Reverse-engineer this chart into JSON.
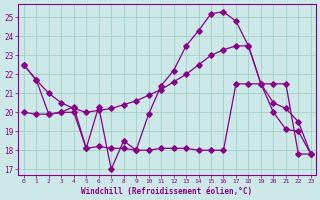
{
  "bg_color": "#cce8e8",
  "line_color": "#880088",
  "grid_color": "#99ccbb",
  "xlabel": "Windchill (Refroidissement éolien,°C)",
  "xlim_min": -0.5,
  "xlim_max": 23.4,
  "ylim_min": 16.7,
  "ylim_max": 25.7,
  "yticks": [
    17,
    18,
    19,
    20,
    21,
    22,
    23,
    24,
    25
  ],
  "xticks": [
    0,
    1,
    2,
    3,
    4,
    5,
    6,
    7,
    8,
    9,
    10,
    11,
    12,
    13,
    14,
    15,
    16,
    17,
    18,
    19,
    20,
    21,
    22,
    23
  ],
  "line1_x": [
    0,
    1,
    2,
    3,
    4,
    5,
    6,
    7,
    8,
    9,
    10,
    11,
    12,
    13,
    14,
    15,
    16,
    17,
    18,
    19,
    20,
    21,
    22,
    23
  ],
  "line1_y": [
    22.5,
    21.7,
    19.9,
    20.0,
    20.3,
    18.1,
    20.3,
    17.0,
    18.5,
    18.0,
    19.9,
    21.4,
    22.2,
    23.5,
    24.3,
    25.2,
    25.3,
    24.8,
    23.5,
    21.5,
    20.0,
    19.1,
    19.0,
    17.8
  ],
  "line2_x": [
    0,
    1,
    2,
    3,
    4,
    5,
    6,
    7,
    8,
    9,
    10,
    11,
    12,
    13,
    14,
    15,
    16,
    17,
    18,
    19,
    20,
    21,
    22,
    23
  ],
  "line2_y": [
    22.5,
    21.7,
    21.0,
    20.5,
    20.2,
    20.0,
    20.1,
    20.2,
    20.4,
    20.6,
    20.9,
    21.2,
    21.6,
    22.0,
    22.5,
    23.0,
    23.3,
    23.5,
    23.5,
    21.5,
    20.5,
    20.2,
    19.5,
    17.8
  ],
  "line3_x": [
    0,
    1,
    2,
    3,
    4,
    5,
    6,
    7,
    8,
    9,
    10,
    11,
    12,
    13,
    14,
    15,
    16,
    17,
    18,
    19,
    20,
    21,
    22,
    23
  ],
  "line3_y": [
    20.0,
    19.9,
    19.9,
    20.0,
    20.0,
    18.1,
    18.2,
    18.1,
    18.1,
    18.0,
    18.0,
    18.1,
    18.1,
    18.1,
    18.0,
    18.0,
    18.0,
    21.5,
    21.5,
    21.5,
    21.5,
    21.5,
    17.8,
    17.8
  ]
}
